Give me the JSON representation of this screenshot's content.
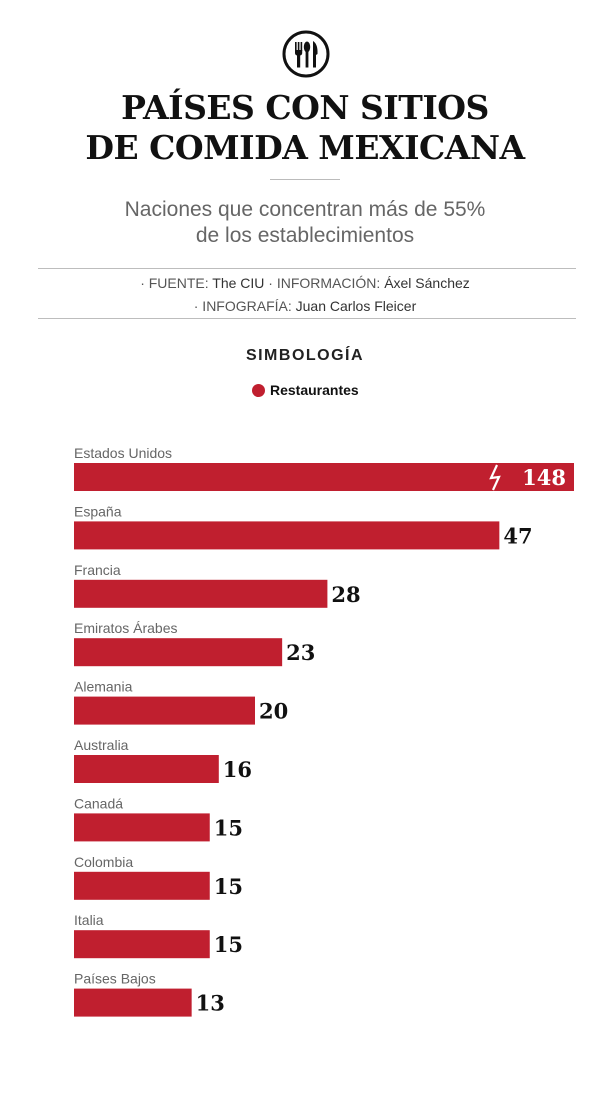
{
  "colors": {
    "bar": "#c01f2f",
    "text": "#222222",
    "muted": "#666666"
  },
  "logo_icon": "fork-spoon-knife-icon",
  "title_lines": [
    "PAÍSES CON SITIOS",
    "DE COMIDA MEXICANA"
  ],
  "subtitle_lines": [
    "Naciones que concentran más de 55%",
    "de los establecimientos"
  ],
  "credits": {
    "fuente_label": "· FUENTE:",
    "fuente_value": "The CIU",
    "info_label": "· INFORMACIÓN:",
    "info_value": "Áxel Sánchez",
    "infografia_label": "· INFOGRAFÍA:",
    "infografia_value": "Juan Carlos Fleicer"
  },
  "legend": {
    "title": "SIMBOLOGÍA",
    "item": "Restaurantes"
  },
  "chart_data": {
    "type": "bar",
    "orientation": "horizontal",
    "categories": [
      "Estados Unidos",
      "España",
      "Francia",
      "Emiratos Árabes",
      "Alemania",
      "Australia",
      "Canadá",
      "Colombia",
      "Italia",
      "Países Bajos"
    ],
    "series": [
      {
        "name": "Restaurantes",
        "values": [
          148,
          47,
          28,
          23,
          20,
          16,
          15,
          15,
          15,
          13
        ]
      }
    ],
    "axis_break": "Estados Unidos",
    "title": "PAÍSES CON SITIOS DE COMIDA MEXICANA",
    "subtitle": "Naciones que concentran más de 55% de los establecimientos",
    "grid": false
  }
}
